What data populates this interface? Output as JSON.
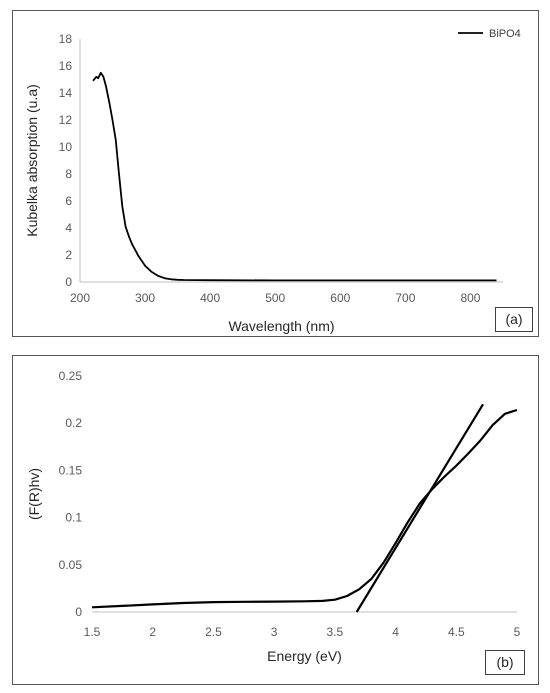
{
  "chart_data": [
    {
      "id": "a",
      "type": "line",
      "title": "",
      "xlabel": "Wavelength (nm)",
      "ylabel": "Kubelka absorption (u.a)",
      "xlim": [
        200,
        850
      ],
      "ylim": [
        0,
        18
      ],
      "xticks": [
        200,
        300,
        400,
        500,
        600,
        700,
        800
      ],
      "yticks": [
        0,
        2,
        4,
        6,
        8,
        10,
        12,
        14,
        16,
        18
      ],
      "legend": {
        "entries": [
          "BiPO4"
        ],
        "placement": "top-right"
      },
      "grid": false,
      "panel_label": "(a)",
      "series": [
        {
          "name": "BiPO4",
          "color": "#000000",
          "x": [
            220,
            225,
            228,
            232,
            236,
            240,
            245,
            250,
            255,
            260,
            265,
            270,
            275,
            280,
            290,
            300,
            310,
            320,
            330,
            340,
            350,
            360,
            380,
            400,
            500,
            600,
            700,
            800,
            840
          ],
          "y": [
            14.9,
            15.2,
            15.1,
            15.5,
            15.2,
            14.5,
            13.3,
            12.0,
            10.5,
            8.0,
            5.6,
            4.1,
            3.4,
            2.8,
            1.9,
            1.2,
            0.75,
            0.45,
            0.28,
            0.2,
            0.16,
            0.15,
            0.14,
            0.13,
            0.12,
            0.12,
            0.12,
            0.12,
            0.12
          ]
        }
      ]
    },
    {
      "id": "b",
      "type": "line",
      "title": "",
      "xlabel": "Energy (eV)",
      "ylabel": "(F(R)hv)",
      "xlim": [
        1.5,
        5
      ],
      "ylim": [
        0,
        0.25
      ],
      "xticks": [
        "1.5",
        "2",
        "2.5",
        "3",
        "3.5",
        "4",
        "4.5",
        "5"
      ],
      "yticks": [
        "0",
        "0.05",
        "0.1",
        "0.15",
        "0.2",
        "0.25"
      ],
      "grid": false,
      "panel_label": "(b)",
      "series": [
        {
          "color": "#000000",
          "x": [
            1.5,
            1.75,
            2.0,
            2.25,
            2.5,
            2.75,
            3.0,
            3.25,
            3.4,
            3.5,
            3.6,
            3.7,
            3.8,
            3.9,
            4.0,
            4.1,
            4.2,
            4.3,
            4.4,
            4.5,
            4.6,
            4.7,
            4.8,
            4.9,
            5.0
          ],
          "y": [
            0.005,
            0.0065,
            0.008,
            0.0095,
            0.0105,
            0.0108,
            0.011,
            0.0113,
            0.0118,
            0.013,
            0.017,
            0.024,
            0.035,
            0.052,
            0.073,
            0.095,
            0.115,
            0.13,
            0.143,
            0.155,
            0.168,
            0.182,
            0.198,
            0.21,
            0.214
          ]
        },
        {
          "color": "#000000",
          "x": [
            3.68,
            4.72
          ],
          "y": [
            0.0,
            0.22
          ]
        }
      ]
    }
  ]
}
